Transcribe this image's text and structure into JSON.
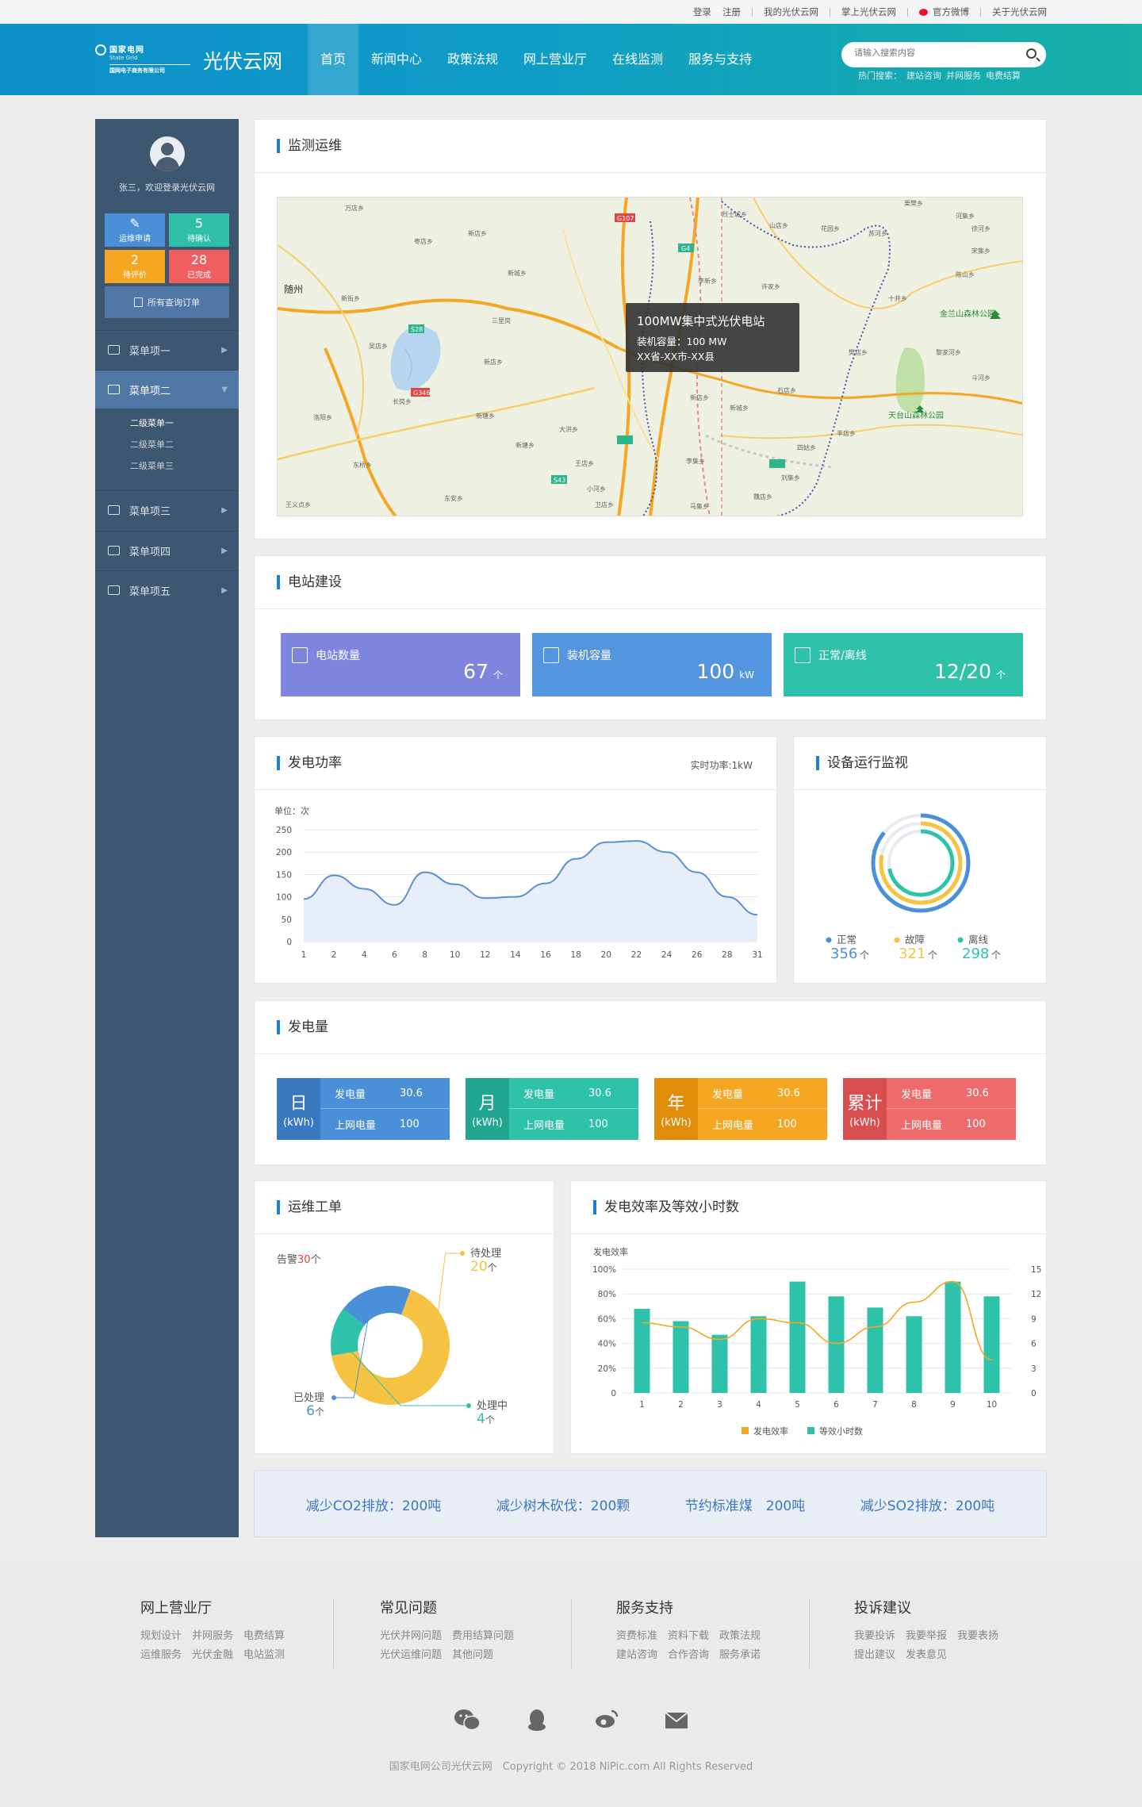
{
  "toplinks": [
    "登录",
    "注册",
    "我的光伏云网",
    "掌上光伏云网",
    "官方微博",
    "关于光伏云网"
  ],
  "logo": {
    "line1": "国家电网",
    "line2": "State Grid",
    "line3": "国网电子商务有限公司"
  },
  "site_name": "光伏云网",
  "nav": [
    {
      "label": "首页",
      "active": true
    },
    {
      "label": "新闻中心"
    },
    {
      "label": "政策法规"
    },
    {
      "label": "网上营业厅"
    },
    {
      "label": "在线监测"
    },
    {
      "label": "服务与支持"
    }
  ],
  "search": {
    "placeholder": "请输入搜索内容",
    "hot_label": "热门搜索：",
    "hot_items": [
      "建站咨询",
      "并网服务",
      "电费结算"
    ]
  },
  "sidebar": {
    "welcome": "张三，欢迎登录光伏云网",
    "tiles": [
      {
        "num": "",
        "label": "运维申请",
        "color": "#4a90d9"
      },
      {
        "num": "5",
        "label": "待确认",
        "color": "#2dbfa8"
      },
      {
        "num": "2",
        "label": "待评价",
        "color": "#f5a623"
      },
      {
        "num": "28",
        "label": "已完成",
        "color": "#ef5f5f"
      }
    ],
    "all_orders": "所有查询订单",
    "menus": [
      {
        "label": "菜单项一",
        "icon": "monitor-icon"
      },
      {
        "label": "菜单项二",
        "icon": "wallet-icon",
        "active": true,
        "sub": [
          "二级菜单一",
          "二级菜单二",
          "二级菜单三"
        ]
      },
      {
        "label": "菜单项三",
        "icon": "chart-screen-icon"
      },
      {
        "label": "菜单项四",
        "icon": "money-bag-icon"
      },
      {
        "label": "菜单项五",
        "icon": "document-edit-icon"
      }
    ]
  },
  "monitor": {
    "title": "监测运维",
    "tooltip": {
      "name": "100MW集中式光伏电站",
      "capacity": "装机容量：100 MW",
      "location": "XX省-XX市-XX县"
    },
    "map_labels": [
      "随州",
      "金兰山森林公园",
      "天台山森林公园",
      "G107",
      "G4",
      "G346",
      "S28",
      "S43"
    ]
  },
  "station": {
    "title": "电站建设",
    "cards": [
      {
        "label": "电站数量",
        "value": "67",
        "unit": "个",
        "color": "#7f84df"
      },
      {
        "label": "装机容量",
        "value": "100",
        "unit": "kW",
        "color": "#5495e0"
      },
      {
        "label": "正常/离线",
        "value": "12/20",
        "unit": "个",
        "color": "#2ec2ab"
      }
    ]
  },
  "power": {
    "title": "发电功率",
    "extra": "实时功率:1kW",
    "chart_data": {
      "type": "area",
      "unit_label": "单位：次",
      "x": [
        "1",
        "2",
        "4",
        "6",
        "8",
        "10",
        "12",
        "14",
        "16",
        "18",
        "20",
        "22",
        "24",
        "26",
        "28",
        "31"
      ],
      "y_ticks": [
        0,
        50,
        100,
        150,
        200,
        250
      ],
      "ylim": [
        0,
        250
      ],
      "values": [
        95,
        148,
        118,
        82,
        155,
        128,
        97,
        100,
        130,
        185,
        222,
        225,
        200,
        155,
        100,
        60
      ]
    }
  },
  "devices": {
    "title": "设备运行监视",
    "chart_data": {
      "type": "pie",
      "series": [
        {
          "name": "正常",
          "value": 356,
          "unit": "个",
          "color": "#4a90d9"
        },
        {
          "name": "故障",
          "value": 321,
          "unit": "个",
          "color": "#f5c242"
        },
        {
          "name": "离线",
          "value": 298,
          "unit": "个",
          "color": "#2ec2ab"
        }
      ]
    }
  },
  "generation": {
    "title": "发电量",
    "cards": [
      {
        "period": "日",
        "unit": "(kWh)",
        "k1": "发电量",
        "v1": "30.6",
        "k2": "上网电量",
        "v2": "100",
        "color": "#4a90d9",
        "dark": "#3a78bf"
      },
      {
        "period": "月",
        "unit": "(kWh)",
        "k1": "发电量",
        "v1": "30.6",
        "k2": "上网电量",
        "v2": "100",
        "color": "#2ec2ab",
        "dark": "#22a591"
      },
      {
        "period": "年",
        "unit": "(kWh)",
        "k1": "发电量",
        "v1": "30.6",
        "k2": "上网电量",
        "v2": "100",
        "color": "#f5a623",
        "dark": "#e08d0c"
      },
      {
        "period": "累计",
        "unit": "(kWh)",
        "k1": "发电量",
        "v1": "30.6",
        "k2": "上网电量",
        "v2": "100",
        "color": "#ef6b6b",
        "dark": "#d94f4f"
      }
    ]
  },
  "workorders": {
    "title": "运维工单",
    "alarm_label": "告警",
    "alarm_count": "30",
    "alarm_unit": "个",
    "chart_data": {
      "type": "pie",
      "series": [
        {
          "name": "待处理",
          "value": 20,
          "unit": "个",
          "color": "#f5c242"
        },
        {
          "name": "处理中",
          "value": 4,
          "unit": "个",
          "color": "#2ec2ab"
        },
        {
          "name": "已处理",
          "value": 6,
          "unit": "个",
          "color": "#4a90d9"
        }
      ]
    }
  },
  "efficiency": {
    "title": "发电效率及等效小时数",
    "chart_data": {
      "type": "bar",
      "ylabel": "发电效率",
      "categories": [
        "1",
        "2",
        "3",
        "4",
        "5",
        "6",
        "7",
        "8",
        "9",
        "10"
      ],
      "left_ticks": [
        "0",
        "20%",
        "40%",
        "60%",
        "80%",
        "100%"
      ],
      "right_ticks": [
        "0",
        "3",
        "6",
        "9",
        "12",
        "15"
      ],
      "series": [
        {
          "name": "发电效率",
          "type": "line",
          "color": "#f5a623",
          "values": [
            8.5,
            8,
            6.5,
            9,
            8.5,
            6,
            8,
            11,
            13.5,
            4
          ]
        },
        {
          "name": "等效小时数",
          "type": "bar",
          "color": "#2ec2ab",
          "values": [
            68,
            58,
            47,
            62,
            90,
            78,
            69,
            62,
            90,
            78
          ]
        }
      ]
    }
  },
  "eco": [
    "减少CO2排放：200吨",
    "减少树木砍伐：200颗",
    "节约标准煤　200吨",
    "减少SO2排放：200吨"
  ],
  "footer": {
    "cols": [
      {
        "title": "网上营业厅",
        "lines": [
          "规划设计　并网服务　电费结算",
          "运维服务　光伏金融　电站监测"
        ]
      },
      {
        "title": "常见问题",
        "lines": [
          "光伏并网问题　费用结算问题",
          "光伏运维问题　其他问题"
        ]
      },
      {
        "title": "服务支持",
        "lines": [
          "资费标准　资料下载　政策法规",
          "建站咨询　合作咨询　服务承诺"
        ]
      },
      {
        "title": "投诉建议",
        "lines": [
          "我要投诉　我要举报　我要表扬",
          "提出建议　发表意见"
        ]
      }
    ],
    "social": [
      "wechat-icon",
      "qq-icon",
      "weibo-icon",
      "mail-icon"
    ],
    "copyright": "国家电网公司光伏云网　Copyright © 2018 NiPic.com All Rights Reserved"
  }
}
